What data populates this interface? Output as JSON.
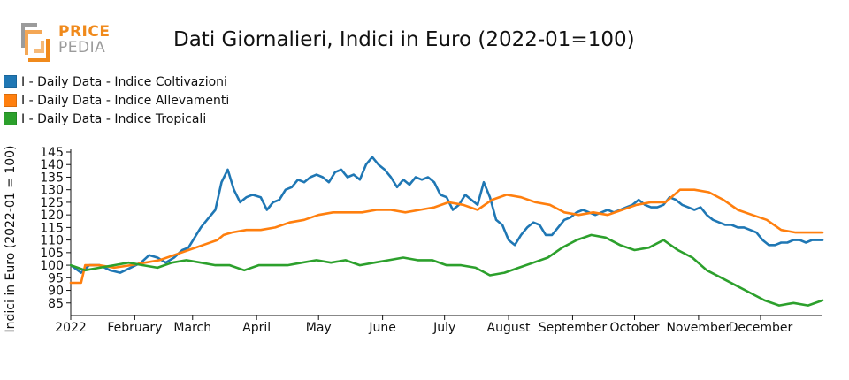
{
  "logo": {
    "line1": "PRICE",
    "line2": "PEDIA",
    "accent": "#f08a1c",
    "grey": "#9b9b9b"
  },
  "chart_data": {
    "type": "line",
    "title": "Dati Giornalieri, Indici in Euro (2022-01=100)",
    "xlabel": "",
    "ylabel": "Indici in Euro (2022-01 = 100)",
    "ylim": [
      80,
      145
    ],
    "yticks": [
      85,
      90,
      95,
      100,
      105,
      110,
      115,
      120,
      125,
      130,
      135,
      140,
      145
    ],
    "xlim": [
      "2022-01-01",
      "2022-12-31"
    ],
    "xticks": [
      {
        "date": "2022-01-01",
        "label": "2022"
      },
      {
        "date": "2022-02-01",
        "label": "February"
      },
      {
        "date": "2022-03-01",
        "label": "March"
      },
      {
        "date": "2022-04-01",
        "label": "April"
      },
      {
        "date": "2022-05-01",
        "label": "May"
      },
      {
        "date": "2022-06-01",
        "label": "June"
      },
      {
        "date": "2022-07-01",
        "label": "July"
      },
      {
        "date": "2022-08-01",
        "label": "August"
      },
      {
        "date": "2022-09-01",
        "label": "September"
      },
      {
        "date": "2022-10-01",
        "label": "October"
      },
      {
        "date": "2022-11-01",
        "label": "November"
      },
      {
        "date": "2022-12-01",
        "label": "December"
      }
    ],
    "legend_position": "top-left",
    "grid": false,
    "series": [
      {
        "name": "I - Daily Data - Indice Coltivazioni",
        "color": "#1f77b4",
        "points": [
          [
            "2022-01-01",
            100
          ],
          [
            "2022-01-06",
            97
          ],
          [
            "2022-01-10",
            100
          ],
          [
            "2022-01-15",
            100
          ],
          [
            "2022-01-20",
            98
          ],
          [
            "2022-01-25",
            97
          ],
          [
            "2022-01-30",
            99
          ],
          [
            "2022-02-04",
            101
          ],
          [
            "2022-02-08",
            104
          ],
          [
            "2022-02-12",
            103
          ],
          [
            "2022-02-16",
            101
          ],
          [
            "2022-02-20",
            103
          ],
          [
            "2022-02-24",
            106
          ],
          [
            "2022-02-27",
            107
          ],
          [
            "2022-03-02",
            111
          ],
          [
            "2022-03-05",
            115
          ],
          [
            "2022-03-08",
            118
          ],
          [
            "2022-03-12",
            122
          ],
          [
            "2022-03-15",
            133
          ],
          [
            "2022-03-18",
            138
          ],
          [
            "2022-03-21",
            130
          ],
          [
            "2022-03-24",
            125
          ],
          [
            "2022-03-27",
            127
          ],
          [
            "2022-03-30",
            128
          ],
          [
            "2022-04-03",
            127
          ],
          [
            "2022-04-06",
            122
          ],
          [
            "2022-04-09",
            125
          ],
          [
            "2022-04-12",
            126
          ],
          [
            "2022-04-15",
            130
          ],
          [
            "2022-04-18",
            131
          ],
          [
            "2022-04-21",
            134
          ],
          [
            "2022-04-24",
            133
          ],
          [
            "2022-04-27",
            135
          ],
          [
            "2022-04-30",
            136
          ],
          [
            "2022-05-03",
            135
          ],
          [
            "2022-05-06",
            133
          ],
          [
            "2022-05-09",
            137
          ],
          [
            "2022-05-12",
            138
          ],
          [
            "2022-05-15",
            135
          ],
          [
            "2022-05-18",
            136
          ],
          [
            "2022-05-21",
            134
          ],
          [
            "2022-05-24",
            140
          ],
          [
            "2022-05-27",
            143
          ],
          [
            "2022-05-30",
            140
          ],
          [
            "2022-06-02",
            138
          ],
          [
            "2022-06-05",
            135
          ],
          [
            "2022-06-08",
            131
          ],
          [
            "2022-06-11",
            134
          ],
          [
            "2022-06-14",
            132
          ],
          [
            "2022-06-17",
            135
          ],
          [
            "2022-06-20",
            134
          ],
          [
            "2022-06-23",
            135
          ],
          [
            "2022-06-26",
            133
          ],
          [
            "2022-06-29",
            128
          ],
          [
            "2022-07-02",
            127
          ],
          [
            "2022-07-05",
            122
          ],
          [
            "2022-07-08",
            124
          ],
          [
            "2022-07-11",
            128
          ],
          [
            "2022-07-14",
            126
          ],
          [
            "2022-07-17",
            124
          ],
          [
            "2022-07-20",
            133
          ],
          [
            "2022-07-23",
            127
          ],
          [
            "2022-07-26",
            118
          ],
          [
            "2022-07-29",
            116
          ],
          [
            "2022-08-01",
            110
          ],
          [
            "2022-08-04",
            108
          ],
          [
            "2022-08-07",
            112
          ],
          [
            "2022-08-10",
            115
          ],
          [
            "2022-08-13",
            117
          ],
          [
            "2022-08-16",
            116
          ],
          [
            "2022-08-19",
            112
          ],
          [
            "2022-08-22",
            112
          ],
          [
            "2022-08-25",
            115
          ],
          [
            "2022-08-28",
            118
          ],
          [
            "2022-08-31",
            119
          ],
          [
            "2022-09-03",
            121
          ],
          [
            "2022-09-06",
            122
          ],
          [
            "2022-09-09",
            121
          ],
          [
            "2022-09-12",
            120
          ],
          [
            "2022-09-15",
            121
          ],
          [
            "2022-09-18",
            122
          ],
          [
            "2022-09-21",
            121
          ],
          [
            "2022-09-24",
            122
          ],
          [
            "2022-09-27",
            123
          ],
          [
            "2022-09-30",
            124
          ],
          [
            "2022-10-03",
            126
          ],
          [
            "2022-10-06",
            124
          ],
          [
            "2022-10-09",
            123
          ],
          [
            "2022-10-12",
            123
          ],
          [
            "2022-10-15",
            124
          ],
          [
            "2022-10-18",
            127
          ],
          [
            "2022-10-21",
            126
          ],
          [
            "2022-10-24",
            124
          ],
          [
            "2022-10-27",
            123
          ],
          [
            "2022-10-30",
            122
          ],
          [
            "2022-11-02",
            123
          ],
          [
            "2022-11-05",
            120
          ],
          [
            "2022-11-08",
            118
          ],
          [
            "2022-11-11",
            117
          ],
          [
            "2022-11-14",
            116
          ],
          [
            "2022-11-17",
            116
          ],
          [
            "2022-11-20",
            115
          ],
          [
            "2022-11-23",
            115
          ],
          [
            "2022-11-26",
            114
          ],
          [
            "2022-11-29",
            113
          ],
          [
            "2022-12-02",
            110
          ],
          [
            "2022-12-05",
            108
          ],
          [
            "2022-12-08",
            108
          ],
          [
            "2022-12-11",
            109
          ],
          [
            "2022-12-14",
            109
          ],
          [
            "2022-12-17",
            110
          ],
          [
            "2022-12-20",
            110
          ],
          [
            "2022-12-23",
            109
          ],
          [
            "2022-12-26",
            110
          ],
          [
            "2022-12-31",
            110
          ]
        ]
      },
      {
        "name": "I - Daily Data - Indice Allevamenti",
        "color": "#ff7f0e",
        "points": [
          [
            "2022-01-01",
            93
          ],
          [
            "2022-01-06",
            93
          ],
          [
            "2022-01-08",
            100
          ],
          [
            "2022-01-15",
            100
          ],
          [
            "2022-01-22",
            99
          ],
          [
            "2022-01-30",
            100
          ],
          [
            "2022-02-06",
            101
          ],
          [
            "2022-02-13",
            102
          ],
          [
            "2022-02-20",
            104
          ],
          [
            "2022-02-27",
            106
          ],
          [
            "2022-03-06",
            108
          ],
          [
            "2022-03-13",
            110
          ],
          [
            "2022-03-16",
            112
          ],
          [
            "2022-03-20",
            113
          ],
          [
            "2022-03-27",
            114
          ],
          [
            "2022-04-03",
            114
          ],
          [
            "2022-04-10",
            115
          ],
          [
            "2022-04-17",
            117
          ],
          [
            "2022-04-24",
            118
          ],
          [
            "2022-05-01",
            120
          ],
          [
            "2022-05-08",
            121
          ],
          [
            "2022-05-15",
            121
          ],
          [
            "2022-05-22",
            121
          ],
          [
            "2022-05-29",
            122
          ],
          [
            "2022-06-05",
            122
          ],
          [
            "2022-06-12",
            121
          ],
          [
            "2022-06-19",
            122
          ],
          [
            "2022-06-26",
            123
          ],
          [
            "2022-07-03",
            125
          ],
          [
            "2022-07-10",
            124
          ],
          [
            "2022-07-17",
            122
          ],
          [
            "2022-07-24",
            126
          ],
          [
            "2022-07-31",
            128
          ],
          [
            "2022-08-07",
            127
          ],
          [
            "2022-08-14",
            125
          ],
          [
            "2022-08-21",
            124
          ],
          [
            "2022-08-28",
            121
          ],
          [
            "2022-09-04",
            120
          ],
          [
            "2022-09-11",
            121
          ],
          [
            "2022-09-18",
            120
          ],
          [
            "2022-09-25",
            122
          ],
          [
            "2022-10-02",
            124
          ],
          [
            "2022-10-09",
            125
          ],
          [
            "2022-10-16",
            125
          ],
          [
            "2022-10-23",
            130
          ],
          [
            "2022-10-30",
            130
          ],
          [
            "2022-11-06",
            129
          ],
          [
            "2022-11-13",
            126
          ],
          [
            "2022-11-20",
            122
          ],
          [
            "2022-11-27",
            120
          ],
          [
            "2022-12-04",
            118
          ],
          [
            "2022-12-11",
            114
          ],
          [
            "2022-12-18",
            113
          ],
          [
            "2022-12-25",
            113
          ],
          [
            "2022-12-31",
            113
          ]
        ]
      },
      {
        "name": "I - Daily Data - Indice Tropicali",
        "color": "#2ca02c",
        "points": [
          [
            "2022-01-01",
            100
          ],
          [
            "2022-01-08",
            98
          ],
          [
            "2022-01-15",
            99
          ],
          [
            "2022-01-22",
            100
          ],
          [
            "2022-01-29",
            101
          ],
          [
            "2022-02-05",
            100
          ],
          [
            "2022-02-12",
            99
          ],
          [
            "2022-02-19",
            101
          ],
          [
            "2022-02-26",
            102
          ],
          [
            "2022-03-05",
            101
          ],
          [
            "2022-03-12",
            100
          ],
          [
            "2022-03-19",
            100
          ],
          [
            "2022-03-26",
            98
          ],
          [
            "2022-04-02",
            100
          ],
          [
            "2022-04-09",
            100
          ],
          [
            "2022-04-16",
            100
          ],
          [
            "2022-04-23",
            101
          ],
          [
            "2022-04-30",
            102
          ],
          [
            "2022-05-07",
            101
          ],
          [
            "2022-05-14",
            102
          ],
          [
            "2022-05-21",
            100
          ],
          [
            "2022-05-28",
            101
          ],
          [
            "2022-06-04",
            102
          ],
          [
            "2022-06-11",
            103
          ],
          [
            "2022-06-18",
            102
          ],
          [
            "2022-06-25",
            102
          ],
          [
            "2022-07-02",
            100
          ],
          [
            "2022-07-09",
            100
          ],
          [
            "2022-07-16",
            99
          ],
          [
            "2022-07-23",
            96
          ],
          [
            "2022-07-30",
            97
          ],
          [
            "2022-08-06",
            99
          ],
          [
            "2022-08-13",
            101
          ],
          [
            "2022-08-20",
            103
          ],
          [
            "2022-08-27",
            107
          ],
          [
            "2022-09-03",
            110
          ],
          [
            "2022-09-10",
            112
          ],
          [
            "2022-09-17",
            111
          ],
          [
            "2022-09-24",
            108
          ],
          [
            "2022-10-01",
            106
          ],
          [
            "2022-10-08",
            107
          ],
          [
            "2022-10-15",
            110
          ],
          [
            "2022-10-22",
            106
          ],
          [
            "2022-10-29",
            103
          ],
          [
            "2022-11-05",
            98
          ],
          [
            "2022-11-12",
            95
          ],
          [
            "2022-11-19",
            92
          ],
          [
            "2022-11-26",
            89
          ],
          [
            "2022-12-03",
            86
          ],
          [
            "2022-12-10",
            84
          ],
          [
            "2022-12-17",
            85
          ],
          [
            "2022-12-24",
            84
          ],
          [
            "2022-12-31",
            86
          ]
        ]
      }
    ]
  }
}
